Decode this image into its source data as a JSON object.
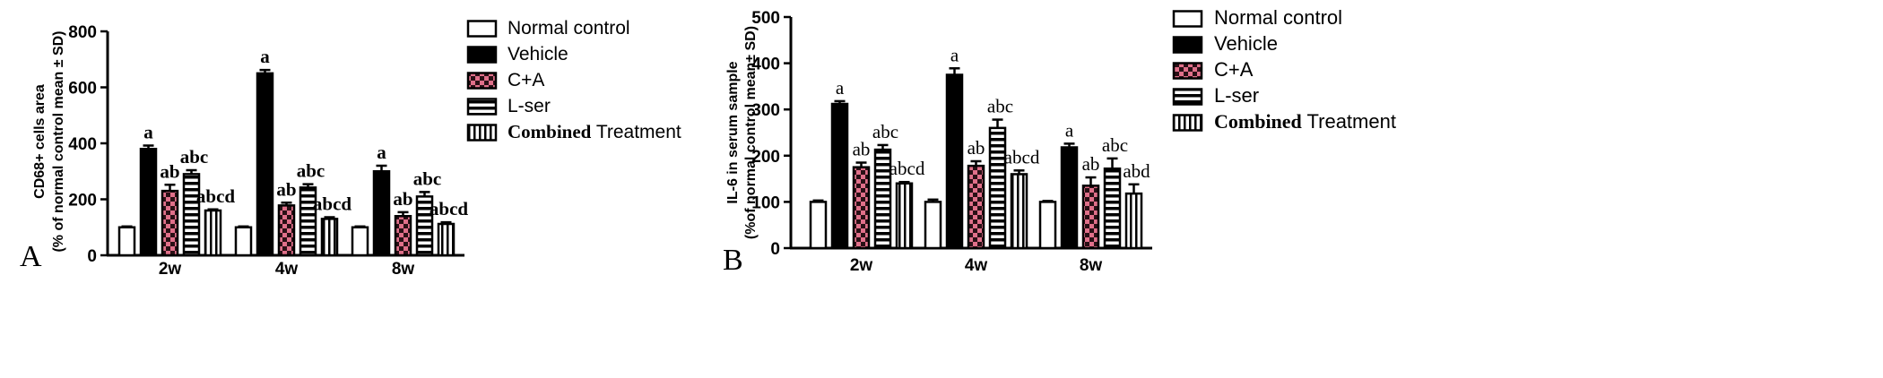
{
  "colors": {
    "axis": "#000000",
    "vehicle": "#000000",
    "normal": "#ffffff",
    "ca_pink": "#e0708a",
    "ca_dark": "#2a1016"
  },
  "legend_labels": [
    {
      "prefix": "",
      "text": "Normal control"
    },
    {
      "prefix": "",
      "text": "Vehicle"
    },
    {
      "prefix": "",
      "text": "C+A"
    },
    {
      "prefix": "",
      "text": "L-ser"
    },
    {
      "prefix": "Combined",
      "text": " Treatment"
    }
  ],
  "chart_data": [
    {
      "type": "bar",
      "panel_label": "A",
      "ylabel_line1": "CD68+ cells area",
      "ylabel_line2": "(% of normal control mean ± SD)",
      "categories": [
        "2w",
        "4w",
        "8w"
      ],
      "ylim": [
        0,
        800
      ],
      "yticks": [
        0,
        200,
        400,
        600,
        800
      ],
      "series": [
        {
          "name": "Normal control",
          "values": [
            100,
            100,
            100
          ],
          "errors": [
            3,
            3,
            3
          ],
          "labels": [
            "",
            "",
            ""
          ]
        },
        {
          "name": "Vehicle",
          "values": [
            380,
            650,
            300
          ],
          "errors": [
            12,
            12,
            20
          ],
          "labels": [
            "a",
            "a",
            "a"
          ]
        },
        {
          "name": "C+A",
          "values": [
            230,
            178,
            140
          ],
          "errors": [
            22,
            10,
            14
          ],
          "labels": [
            "ab",
            "ab",
            "ab"
          ]
        },
        {
          "name": "L-ser",
          "values": [
            290,
            242,
            210
          ],
          "errors": [
            14,
            12,
            16
          ],
          "labels": [
            "abc",
            "abc",
            "abc"
          ]
        },
        {
          "name": "Combined Treatment",
          "values": [
            160,
            130,
            112
          ],
          "errors": [
            4,
            6,
            6
          ],
          "labels": [
            "abcd",
            "abcd",
            "abcd"
          ]
        }
      ]
    },
    {
      "type": "bar",
      "panel_label": "B",
      "ylabel_line1": "IL-6  in serum sample",
      "ylabel_line2": "(%of normal control mean± SD)",
      "categories": [
        "2w",
        "4w",
        "8w"
      ],
      "ylim": [
        0,
        500
      ],
      "yticks": [
        0,
        100,
        200,
        300,
        400,
        500
      ],
      "series": [
        {
          "name": "Normal control",
          "values": [
            100,
            100,
            100
          ],
          "errors": [
            3,
            5,
            2
          ],
          "labels": [
            "",
            "",
            ""
          ]
        },
        {
          "name": "Vehicle",
          "values": [
            312,
            375,
            218
          ],
          "errors": [
            6,
            14,
            8
          ],
          "labels": [
            "a",
            "a",
            "a"
          ]
        },
        {
          "name": "C+A",
          "values": [
            175,
            178,
            135
          ],
          "errors": [
            10,
            10,
            18
          ],
          "labels": [
            "ab",
            "ab",
            "ab"
          ]
        },
        {
          "name": "L-ser",
          "values": [
            213,
            260,
            172
          ],
          "errors": [
            10,
            18,
            22
          ],
          "labels": [
            "abc",
            "abc",
            "abc"
          ]
        },
        {
          "name": "Combined Treatment",
          "values": [
            140,
            160,
            118
          ],
          "errors": [
            3,
            8,
            20
          ],
          "labels": [
            "abcd",
            "abcd",
            "abd"
          ]
        }
      ]
    }
  ]
}
